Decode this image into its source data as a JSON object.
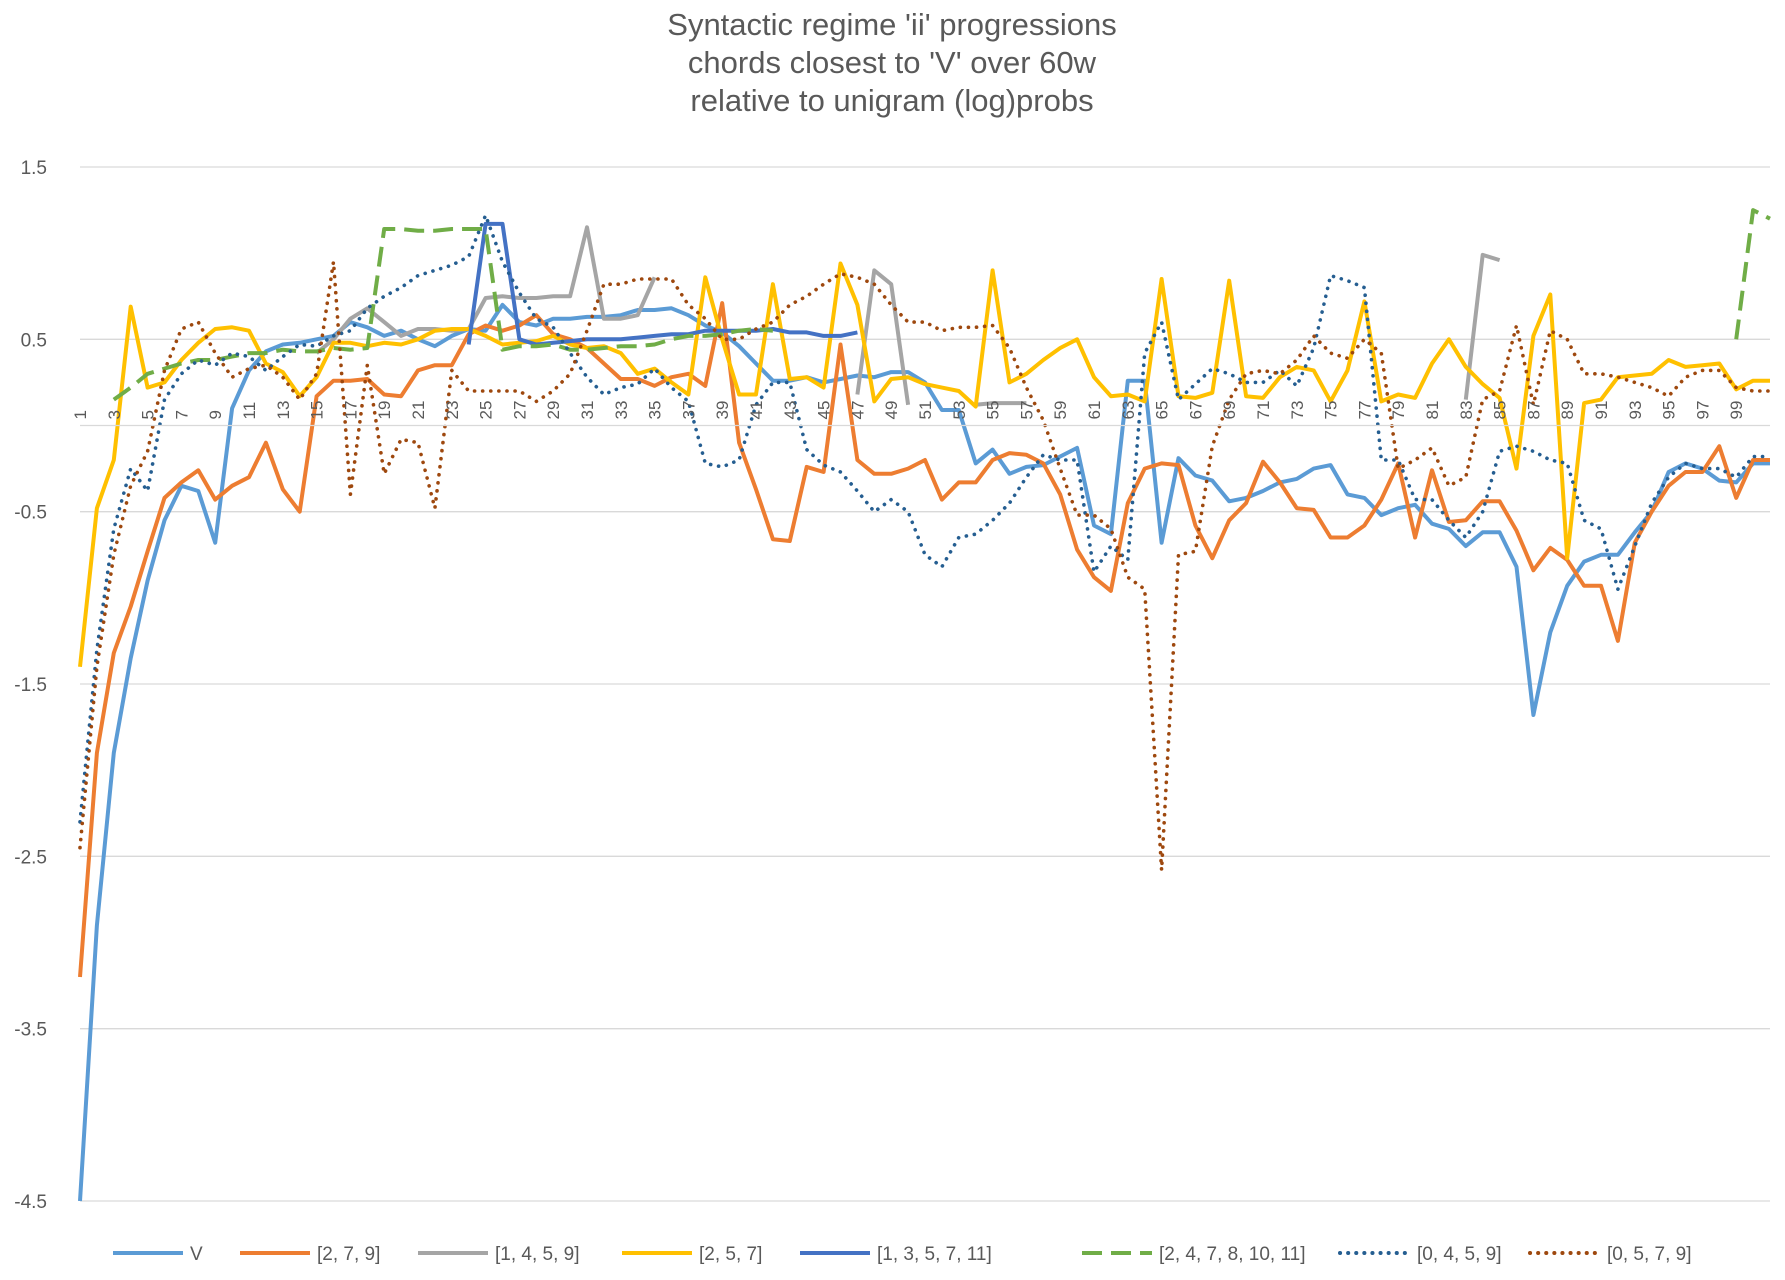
{
  "chart_data": {
    "type": "line",
    "title_lines": [
      "Syntactic regime 'ii' progressions",
      "chords closest to 'V' over 60w",
      "relative to unigram (log)probs"
    ],
    "xlabel": "",
    "ylabel": "",
    "x": [
      1,
      2,
      3,
      4,
      5,
      6,
      7,
      8,
      9,
      10,
      11,
      12,
      13,
      14,
      15,
      16,
      17,
      18,
      19,
      20,
      21,
      22,
      23,
      24,
      25,
      26,
      27,
      28,
      29,
      30,
      31,
      32,
      33,
      34,
      35,
      36,
      37,
      38,
      39,
      40,
      41,
      42,
      43,
      44,
      45,
      46,
      47,
      48,
      49,
      50,
      51,
      52,
      53,
      54,
      55,
      56,
      57,
      58,
      59,
      60,
      61,
      62,
      63,
      64,
      65,
      66,
      67,
      68,
      69,
      70,
      71,
      72,
      73,
      74,
      75,
      76,
      77,
      78,
      79,
      80,
      81,
      82,
      83,
      84,
      85,
      86,
      87,
      88,
      89,
      90,
      91,
      92,
      93,
      94,
      95,
      96,
      97,
      98,
      99,
      100,
      101
    ],
    "x_tick_labels": [
      "1",
      "3",
      "5",
      "7",
      "9",
      "11",
      "13",
      "15",
      "17",
      "19",
      "21",
      "23",
      "25",
      "27",
      "29",
      "31",
      "33",
      "35",
      "37",
      "39",
      "41",
      "43",
      "45",
      "47",
      "49",
      "51",
      "53",
      "55",
      "57",
      "59",
      "61",
      "63",
      "65",
      "67",
      "69",
      "71",
      "73",
      "75",
      "77",
      "79",
      "81",
      "83",
      "85",
      "87",
      "89",
      "91",
      "93",
      "95",
      "97",
      "99"
    ],
    "y_ticks": [
      "1.5",
      "0.5",
      "-0.5",
      "-1.5",
      "-2.5",
      "-3.5",
      "-4.5"
    ],
    "ylim": [
      -4.5,
      1.5
    ],
    "grid": "horizontal",
    "legend_position": "bottom",
    "series": [
      {
        "name": "V",
        "color": "#5B9BD5",
        "dash": "solid",
        "values": [
          -4.5,
          -2.9,
          -1.9,
          -1.35,
          -0.9,
          -0.55,
          -0.35,
          -0.38,
          -0.68,
          0.1,
          0.32,
          0.43,
          0.47,
          0.48,
          0.5,
          0.52,
          0.6,
          0.57,
          0.52,
          0.55,
          0.5,
          0.46,
          0.52,
          0.56,
          0.55,
          0.7,
          0.6,
          0.58,
          0.62,
          0.62,
          0.63,
          0.63,
          0.64,
          0.67,
          0.67,
          0.68,
          0.64,
          0.58,
          0.54,
          0.46,
          0.36,
          0.26,
          0.26,
          0.28,
          0.25,
          0.27,
          0.29,
          0.28,
          0.31,
          0.31,
          0.25,
          0.09,
          0.09,
          -0.22,
          -0.14,
          -0.28,
          -0.24,
          -0.23,
          -0.18,
          -0.13,
          -0.58,
          -0.63,
          0.26,
          0.26,
          -0.68,
          -0.19,
          -0.29,
          -0.32,
          -0.44,
          -0.42,
          -0.38,
          -0.33,
          -0.31,
          -0.25,
          -0.23,
          -0.4,
          -0.42,
          -0.52,
          -0.48,
          -0.46,
          -0.57,
          -0.6,
          -0.7,
          -0.62,
          -0.62,
          -0.82,
          -1.68,
          -1.2,
          -0.93,
          -0.79,
          -0.75,
          -0.75,
          -0.62,
          -0.5,
          -0.27,
          -0.22,
          -0.25,
          -0.32,
          -0.33,
          -0.22,
          -0.22
        ]
      },
      {
        "name": "[2, 7, 9]",
        "color": "#ED7D31",
        "dash": "solid",
        "values": [
          -3.2,
          -1.9,
          -1.32,
          -1.05,
          -0.73,
          -0.42,
          -0.33,
          -0.26,
          -0.43,
          -0.35,
          -0.3,
          -0.1,
          -0.37,
          -0.5,
          0.17,
          0.26,
          0.26,
          0.27,
          0.18,
          0.17,
          0.32,
          0.35,
          0.35,
          0.53,
          0.58,
          0.55,
          0.58,
          0.64,
          0.53,
          0.5,
          0.45,
          0.36,
          0.27,
          0.27,
          0.23,
          0.28,
          0.3,
          0.23,
          0.71,
          -0.1,
          -0.37,
          -0.66,
          -0.67,
          -0.24,
          -0.27,
          0.47,
          -0.2,
          -0.28,
          -0.28,
          -0.25,
          -0.2,
          -0.43,
          -0.33,
          -0.33,
          -0.2,
          -0.16,
          -0.17,
          -0.22,
          -0.4,
          -0.72,
          -0.88,
          -0.96,
          -0.45,
          -0.25,
          -0.22,
          -0.23,
          -0.58,
          -0.77,
          -0.55,
          -0.45,
          -0.21,
          -0.33,
          -0.48,
          -0.49,
          -0.65,
          -0.65,
          -0.58,
          -0.43,
          -0.22,
          -0.65,
          -0.26,
          -0.56,
          -0.55,
          -0.44,
          -0.44,
          -0.61,
          -0.84,
          -0.71,
          -0.78,
          -0.93,
          -0.93,
          -1.25,
          -0.68,
          -0.5,
          -0.35,
          -0.27,
          -0.27,
          -0.12,
          -0.42,
          -0.2,
          -0.2
        ]
      },
      {
        "name": "[1, 4, 5, 9]",
        "color": "#A5A5A5",
        "dash": "solid",
        "values": [
          null,
          null,
          null,
          null,
          null,
          null,
          null,
          null,
          null,
          null,
          null,
          null,
          null,
          null,
          0.42,
          0.5,
          0.62,
          0.68,
          0.6,
          0.52,
          0.56,
          0.56,
          0.55,
          0.56,
          0.74,
          0.75,
          0.74,
          0.74,
          0.75,
          0.75,
          1.15,
          0.62,
          0.62,
          0.64,
          0.86,
          null,
          null,
          null,
          null,
          null,
          null,
          null,
          null,
          null,
          null,
          null,
          0.18,
          0.9,
          0.82,
          0.12,
          null,
          null,
          null,
          0.12,
          0.13,
          0.13,
          0.13,
          null,
          null,
          null,
          null,
          null,
          null,
          null,
          null,
          null,
          null,
          null,
          null,
          null,
          null,
          null,
          null,
          null,
          null,
          null,
          null,
          null,
          null,
          null,
          null,
          null,
          0.15,
          0.99,
          0.96,
          null,
          null,
          null,
          null,
          null,
          null,
          null,
          null,
          null,
          null,
          null,
          null,
          null,
          null,
          null,
          null
        ]
      },
      {
        "name": "[2, 5, 7]",
        "color": "#FFC000",
        "dash": "solid",
        "values": [
          -1.4,
          -0.48,
          -0.2,
          0.69,
          0.22,
          0.25,
          0.38,
          0.48,
          0.56,
          0.57,
          0.55,
          0.36,
          0.31,
          0.17,
          0.28,
          0.48,
          0.48,
          0.46,
          0.48,
          0.47,
          0.5,
          0.55,
          0.56,
          0.56,
          0.52,
          0.47,
          0.48,
          0.49,
          0.52,
          0.47,
          0.45,
          0.46,
          0.42,
          0.3,
          0.33,
          0.25,
          0.18,
          0.86,
          0.5,
          0.18,
          0.18,
          0.82,
          0.27,
          0.28,
          0.22,
          0.94,
          0.7,
          0.14,
          0.27,
          0.28,
          0.24,
          0.22,
          0.2,
          0.11,
          0.9,
          0.25,
          0.3,
          0.38,
          0.45,
          0.5,
          0.28,
          0.17,
          0.18,
          0.14,
          0.85,
          0.17,
          0.16,
          0.19,
          0.84,
          0.17,
          0.16,
          0.28,
          0.34,
          0.32,
          0.14,
          0.32,
          0.72,
          0.14,
          0.18,
          0.16,
          0.36,
          0.5,
          0.34,
          0.24,
          0.16,
          -0.25,
          0.52,
          0.76,
          -0.77,
          0.13,
          0.15,
          0.28,
          0.29,
          0.3,
          0.38,
          0.34,
          0.35,
          0.36,
          0.21,
          0.26,
          0.26
        ]
      },
      {
        "name": "[1, 3, 5, 7, 11]",
        "color": "#4472C4",
        "dash": "solid",
        "values": [
          null,
          null,
          null,
          null,
          null,
          null,
          null,
          null,
          null,
          null,
          null,
          null,
          null,
          null,
          null,
          null,
          null,
          null,
          null,
          null,
          null,
          null,
          null,
          0.47,
          1.17,
          1.17,
          0.5,
          0.47,
          0.48,
          0.49,
          0.5,
          0.5,
          0.5,
          0.51,
          0.52,
          0.53,
          0.53,
          0.55,
          0.55,
          0.55,
          0.55,
          0.56,
          0.54,
          0.54,
          0.52,
          0.52,
          0.54,
          null,
          null,
          null,
          null,
          null,
          null,
          null,
          null,
          null,
          null,
          null,
          null,
          null,
          null,
          null,
          null,
          null,
          null,
          null,
          null,
          null,
          null,
          null,
          null,
          null,
          null,
          null,
          null,
          null,
          null,
          null,
          null,
          null,
          null,
          null,
          null,
          null,
          null,
          null,
          null,
          null,
          null,
          null,
          null,
          null,
          null,
          null,
          null,
          null,
          null,
          null,
          null,
          null,
          null
        ]
      },
      {
        "name": "[2, 4, 7, 8, 10, 11]",
        "color": "#70AD47",
        "dash": "dash",
        "values": [
          null,
          null,
          0.15,
          0.22,
          0.3,
          0.33,
          0.36,
          0.38,
          0.38,
          0.4,
          0.42,
          0.42,
          0.44,
          0.43,
          0.43,
          0.45,
          0.44,
          0.45,
          1.14,
          1.14,
          1.13,
          1.13,
          1.14,
          1.14,
          1.14,
          0.44,
          0.46,
          0.46,
          0.47,
          0.44,
          0.44,
          0.45,
          0.46,
          0.46,
          0.47,
          0.5,
          0.52,
          0.52,
          0.53,
          0.55,
          0.56,
          0.55,
          null,
          null,
          null,
          null,
          null,
          null,
          null,
          null,
          null,
          null,
          null,
          null,
          null,
          null,
          null,
          null,
          null,
          null,
          null,
          null,
          null,
          null,
          null,
          null,
          null,
          null,
          null,
          null,
          null,
          null,
          null,
          null,
          null,
          null,
          null,
          null,
          null,
          null,
          null,
          null,
          null,
          null,
          null,
          null,
          null,
          null,
          null,
          null,
          null,
          null,
          null,
          null,
          null,
          null,
          null,
          null,
          0.5,
          1.25,
          1.2
        ]
      },
      {
        "name": "[0, 4, 5, 9]",
        "color": "#255E91",
        "dash": "dot",
        "values": [
          -2.3,
          -1.3,
          -0.6,
          -0.25,
          -0.38,
          0.15,
          0.3,
          0.38,
          0.35,
          0.42,
          0.4,
          0.32,
          0.4,
          0.47,
          0.46,
          0.52,
          0.55,
          0.68,
          0.75,
          0.8,
          0.87,
          0.9,
          0.93,
          0.98,
          1.22,
          0.95,
          0.77,
          0.62,
          0.57,
          0.42,
          0.28,
          0.18,
          0.22,
          0.24,
          0.33,
          0.22,
          0.14,
          -0.22,
          -0.24,
          -0.2,
          0.12,
          0.25,
          0.25,
          -0.14,
          -0.23,
          -0.27,
          -0.38,
          -0.5,
          -0.43,
          -0.5,
          -0.75,
          -0.82,
          -0.65,
          -0.63,
          -0.55,
          -0.45,
          -0.3,
          -0.17,
          -0.2,
          -0.2,
          -0.85,
          -0.7,
          -0.78,
          0.42,
          0.6,
          0.15,
          0.24,
          0.33,
          0.3,
          0.25,
          0.25,
          0.32,
          0.23,
          0.45,
          0.87,
          0.84,
          0.8,
          -0.2,
          -0.2,
          -0.43,
          -0.43,
          -0.55,
          -0.65,
          -0.5,
          -0.15,
          -0.12,
          -0.15,
          -0.2,
          -0.22,
          -0.55,
          -0.6,
          -0.95,
          -0.7,
          -0.45,
          -0.3,
          -0.22,
          -0.25,
          -0.25,
          -0.3,
          -0.18,
          -0.18
        ]
      },
      {
        "name": "[0, 5, 7, 9]",
        "color": "#9E480E",
        "dash": "dot",
        "values": [
          -2.45,
          -1.4,
          -0.75,
          -0.35,
          -0.15,
          0.32,
          0.56,
          0.6,
          0.42,
          0.28,
          0.33,
          0.35,
          0.28,
          0.15,
          0.3,
          0.95,
          -0.4,
          0.35,
          -0.28,
          -0.08,
          -0.1,
          -0.48,
          0.32,
          0.2,
          0.2,
          0.2,
          0.2,
          0.14,
          0.2,
          0.3,
          0.55,
          0.82,
          0.82,
          0.85,
          0.85,
          0.85,
          0.7,
          0.62,
          0.5,
          0.5,
          0.56,
          0.6,
          0.7,
          0.75,
          0.82,
          0.88,
          0.86,
          0.82,
          0.7,
          0.6,
          0.6,
          0.55,
          0.57,
          0.57,
          0.58,
          0.45,
          0.22,
          0.03,
          -0.25,
          -0.52,
          -0.52,
          -0.6,
          -0.88,
          -0.95,
          -2.58,
          -0.75,
          -0.73,
          -0.12,
          0.15,
          0.3,
          0.32,
          0.3,
          0.38,
          0.52,
          0.42,
          0.39,
          0.5,
          0.42,
          -0.25,
          -0.2,
          -0.13,
          -0.35,
          -0.3,
          0.15,
          0.2,
          0.58,
          0.12,
          0.55,
          0.5,
          0.3,
          0.3,
          0.28,
          0.25,
          0.22,
          0.17,
          0.28,
          0.32,
          0.32,
          0.22,
          0.2,
          0.2
        ]
      }
    ]
  }
}
